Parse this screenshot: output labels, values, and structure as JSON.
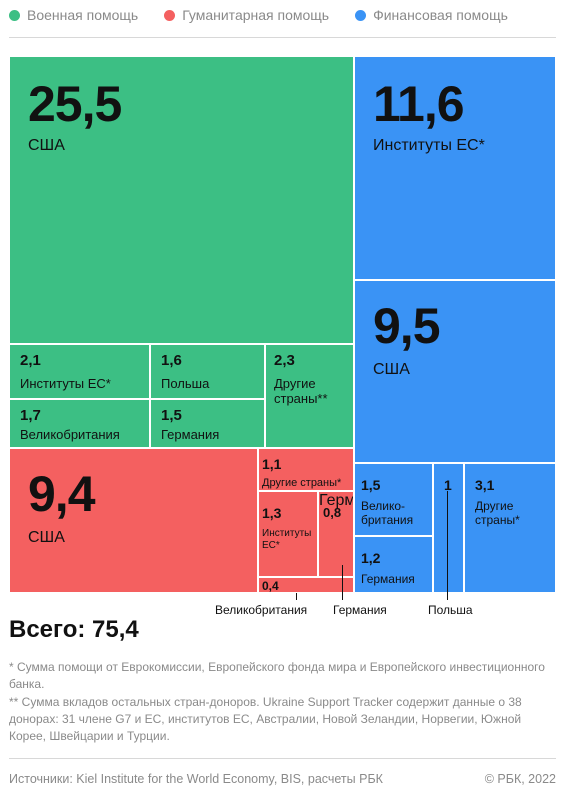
{
  "legend": [
    {
      "label": "Военная помощь",
      "color": "#3cbf84"
    },
    {
      "label": "Гуманитарная помощь",
      "color": "#f46060"
    },
    {
      "label": "Финансовая помощь",
      "color": "#3a93f5"
    }
  ],
  "chart_data": {
    "type": "treemap",
    "unit": "",
    "groups": [
      {
        "name": "Военная помощь",
        "color": "#3cbf84",
        "items": [
          {
            "label": "США",
            "value": 25.5,
            "value_text": "25,5"
          },
          {
            "label": "Институты ЕС*",
            "value": 2.1,
            "value_text": "2,1"
          },
          {
            "label": "Польша",
            "value": 1.6,
            "value_text": "1,6"
          },
          {
            "label": "Другие страны**",
            "value": 2.3,
            "value_text": "2,3"
          },
          {
            "label": "Великобритания",
            "value": 1.7,
            "value_text": "1,7"
          },
          {
            "label": "Германия",
            "value": 1.5,
            "value_text": "1,5"
          }
        ]
      },
      {
        "name": "Гуманитарная помощь",
        "color": "#f46060",
        "items": [
          {
            "label": "США",
            "value": 9.4,
            "value_text": "9,4"
          },
          {
            "label": "Другие страны*",
            "value": 1.1,
            "value_text": "1,1"
          },
          {
            "label": "Институты ЕС*",
            "value": 1.3,
            "value_text": "1,3"
          },
          {
            "label": "Германия",
            "value": 0.8,
            "value_text": "0,8"
          },
          {
            "label": "Великобритания",
            "value": 0.4,
            "value_text": "0,4"
          }
        ]
      },
      {
        "name": "Финансовая помощь",
        "color": "#3a93f5",
        "items": [
          {
            "label": "Институты ЕС*",
            "value": 11.6,
            "value_text": "11,6"
          },
          {
            "label": "США",
            "value": 9.5,
            "value_text": "9,5"
          },
          {
            "label": "Великобритания",
            "value": 1.5,
            "value_text": "1,5"
          },
          {
            "label": "Польша",
            "value": 1,
            "value_text": "1"
          },
          {
            "label": "Другие страны*",
            "value": 3.1,
            "value_text": "3,1"
          },
          {
            "label": "Германия",
            "value": 1.2,
            "value_text": "1,2"
          }
        ]
      }
    ],
    "total_label": "Всего: 75,4",
    "total": 75.4
  },
  "footnotes": [
    "* Сумма помощи от Еврокомиссии, Европейского фонда мира и Европейского инвестиционного банка.",
    "** Сумма вкладов остальных стран-доноров. Ukraine Support Tracker содержит данные о 38 донорах: 31 члене G7 и ЕС, институтов ЕС, Австралии, Новой Зеландии, Норвегии, Южной Корее, Швейцарии и Турции."
  ],
  "footer": {
    "sources": "Источники: Kiel Institute for the World Economy, BIS, расчеты РБК",
    "copyright": "© РБК, 2022"
  }
}
